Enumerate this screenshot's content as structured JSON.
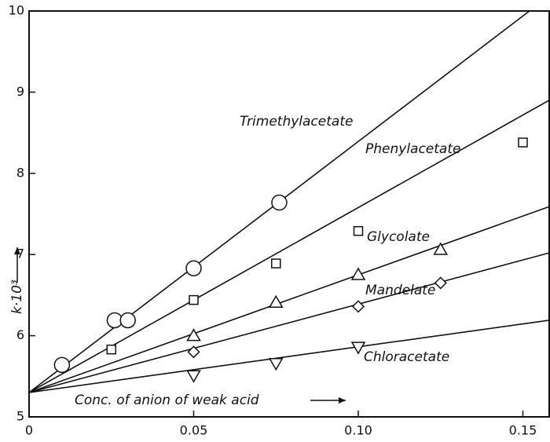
{
  "chart_data": {
    "type": "scatter",
    "x_label": "Conc. of anion of weak acid",
    "y_label": "k·10³",
    "xlim": [
      0,
      0.158
    ],
    "ylim": [
      5,
      10
    ],
    "xticks": [
      0,
      0.05,
      {
        "value": 0.1,
        "label": "0.10"
      },
      0.15
    ],
    "yticks": [
      5,
      6,
      7,
      8,
      9,
      10
    ],
    "color": "#111111",
    "series": [
      {
        "name": "Trimethylacetate",
        "marker": "circle",
        "x": [
          0.01,
          0.026,
          0.03,
          0.05,
          0.076
        ],
        "values": [
          5.64,
          6.19,
          6.19,
          6.83,
          7.64
        ],
        "fit": {
          "x": [
            0,
            0.152
          ],
          "values": [
            5.3,
            10
          ]
        }
      },
      {
        "name": "Phenylacetate",
        "marker": "square",
        "x": [
          0.025,
          0.05,
          0.075,
          0.1,
          0.15
        ],
        "values": [
          5.83,
          6.44,
          6.89,
          7.29,
          8.38
        ],
        "fit": {
          "x": [
            0,
            0.158
          ],
          "values": [
            5.3,
            8.9
          ]
        }
      },
      {
        "name": "Glycolate",
        "marker": "triangle",
        "x": [
          0.05,
          0.075,
          0.1,
          0.125
        ],
        "values": [
          6.0,
          6.41,
          6.75,
          7.06
        ],
        "fit": {
          "x": [
            0,
            0.158
          ],
          "values": [
            5.3,
            7.59
          ]
        }
      },
      {
        "name": "Mandelate",
        "marker": "diamond",
        "x": [
          0.05,
          0.1,
          0.125
        ],
        "values": [
          5.8,
          6.36,
          6.65
        ],
        "fit": {
          "x": [
            0,
            0.158
          ],
          "values": [
            5.3,
            7.02
          ]
        }
      },
      {
        "name": "Chloracetate",
        "marker": "triangle-down",
        "x": [
          0.05,
          0.075,
          0.1
        ],
        "values": [
          5.51,
          5.66,
          5.86
        ],
        "fit": {
          "x": [
            0,
            0.158
          ],
          "values": [
            5.3,
            6.19
          ]
        }
      }
    ]
  }
}
